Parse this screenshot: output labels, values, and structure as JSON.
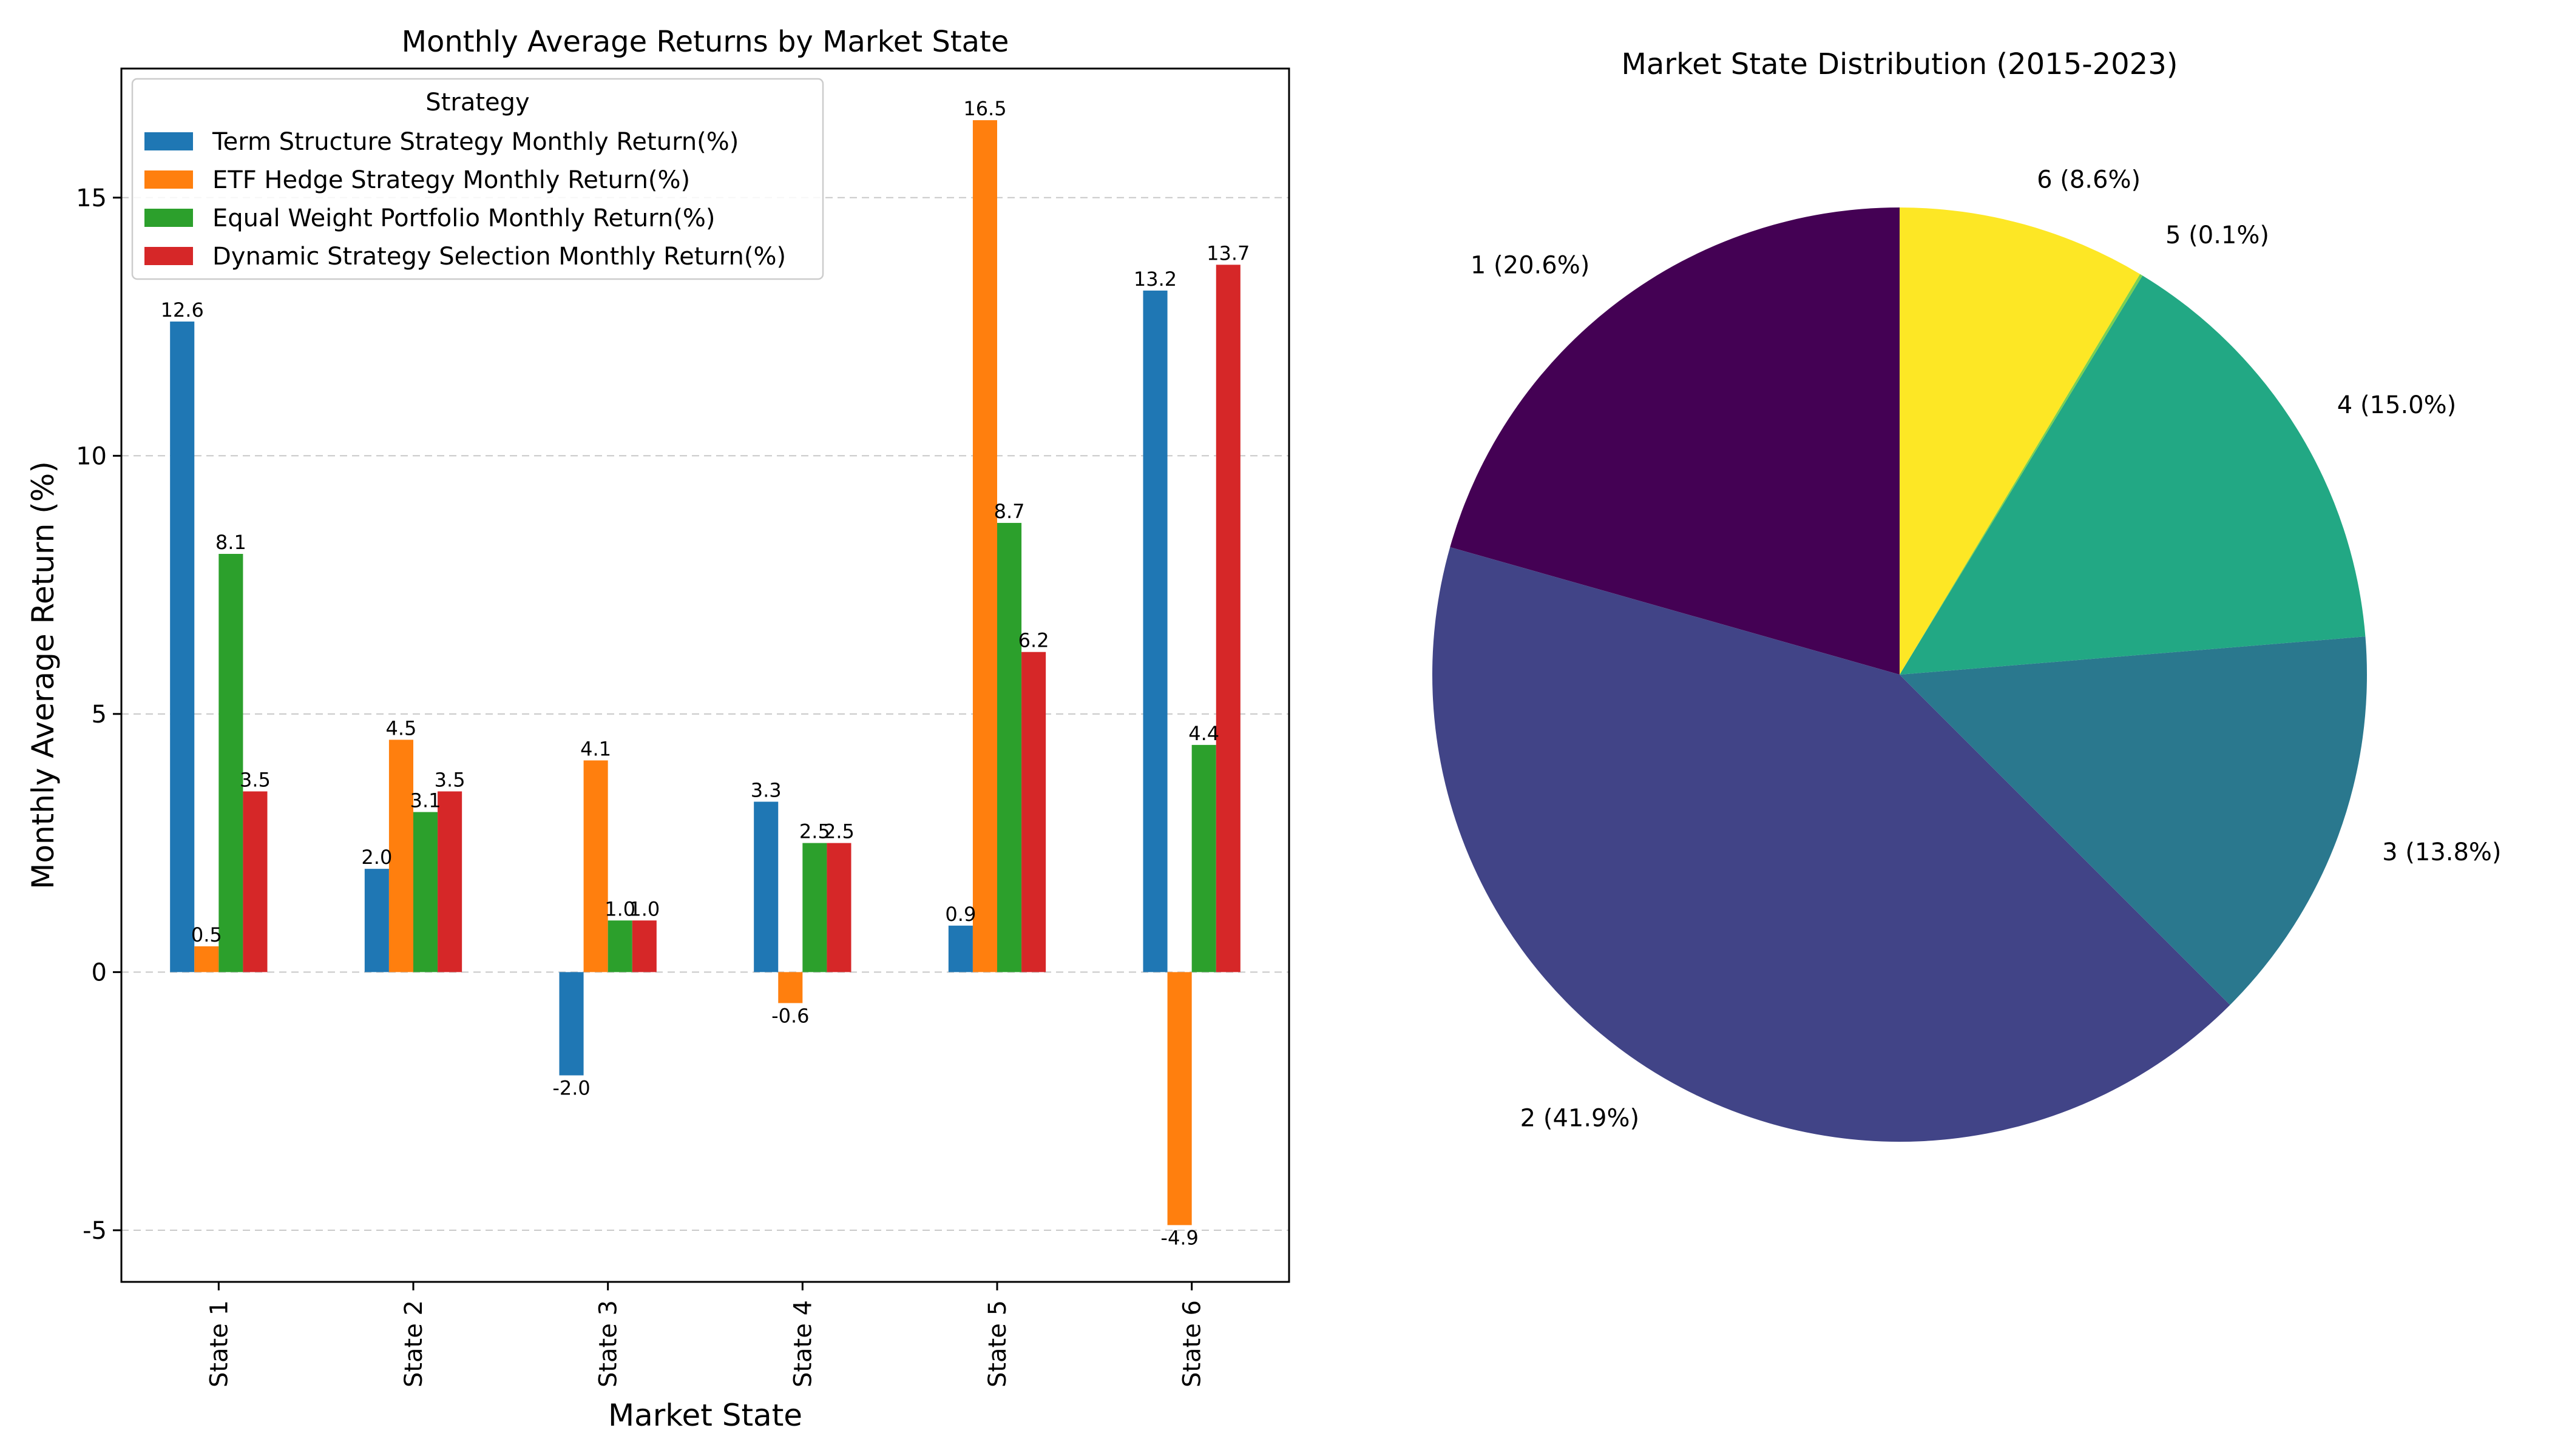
{
  "chart_data": [
    {
      "type": "bar",
      "title": "Monthly Average Returns by Market State",
      "xlabel": "Market State",
      "ylabel": "Monthly Average Return (%)",
      "categories": [
        "State 1",
        "State 2",
        "State 3",
        "State 4",
        "State 5",
        "State 6"
      ],
      "ylim": [
        -6,
        17.5
      ],
      "yticks": [
        -5,
        0,
        5,
        10,
        15
      ],
      "ytick_labels": [
        "-5",
        "0",
        "5",
        "10",
        "15"
      ],
      "grid": "y-dashed",
      "legend": {
        "title": "Strategy",
        "placement": "top-left"
      },
      "series": [
        {
          "name": "Term Structure Strategy Monthly Return(%)",
          "color": "#1f77b4",
          "values": [
            12.6,
            2.0,
            -2.0,
            3.3,
            0.9,
            13.2
          ],
          "labels": [
            "12.6",
            "2.0",
            "-2.0",
            "3.3",
            "0.9",
            "13.2"
          ]
        },
        {
          "name": "ETF Hedge Strategy Monthly Return(%)",
          "color": "#ff7f0e",
          "values": [
            0.5,
            4.5,
            4.1,
            -0.6,
            16.5,
            -4.9
          ],
          "labels": [
            "0.5",
            "4.5",
            "4.1",
            "-0.6",
            "16.5",
            "-4.9"
          ]
        },
        {
          "name": "Equal Weight Portfolio Monthly Return(%)",
          "color": "#2ca02c",
          "values": [
            8.1,
            3.1,
            1.0,
            2.5,
            8.7,
            4.4
          ],
          "labels": [
            "8.1",
            "3.1",
            "1.0",
            "2.5",
            "8.7",
            "4.4"
          ]
        },
        {
          "name": "Dynamic Strategy Selection Monthly Return(%)",
          "color": "#d62728",
          "values": [
            3.5,
            3.5,
            1.0,
            2.5,
            6.2,
            13.7
          ],
          "labels": [
            "3.5",
            "3.5",
            "1.0",
            "2.5",
            "6.2",
            "13.7"
          ]
        }
      ]
    },
    {
      "type": "pie",
      "title": "Market State Distribution (2015-2023)",
      "slices": [
        {
          "label": "1 (20.6%)",
          "value": 20.6,
          "color": "#440154"
        },
        {
          "label": "2 (41.9%)",
          "value": 41.9,
          "color": "#414487"
        },
        {
          "label": "3 (13.8%)",
          "value": 13.8,
          "color": "#2a788e"
        },
        {
          "label": "4 (15.0%)",
          "value": 15.0,
          "color": "#22a884"
        },
        {
          "label": "5 (0.1%)",
          "value": 0.1,
          "color": "#7ad151"
        },
        {
          "label": "6 (8.6%)",
          "value": 8.6,
          "color": "#fde725"
        }
      ]
    }
  ]
}
